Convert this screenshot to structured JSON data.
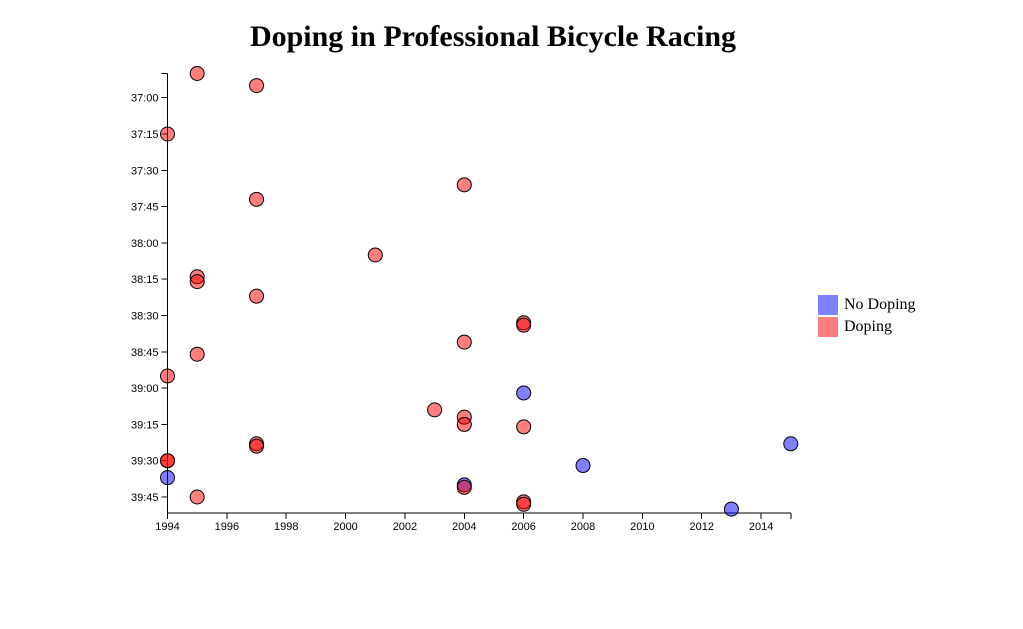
{
  "chart_data": {
    "type": "scatter",
    "title": "Doping in Professional Bicycle Racing",
    "x_axis": {
      "label": "",
      "ticks": [
        "1994",
        "1996",
        "1998",
        "2000",
        "2002",
        "2004",
        "2006",
        "2008",
        "2010",
        "2012",
        "2014"
      ],
      "range": [
        1994,
        2015
      ],
      "grid": false
    },
    "y_axis": {
      "label": "",
      "ticks": [
        "37:00",
        "37:15",
        "37:30",
        "37:45",
        "38:00",
        "38:15",
        "38:30",
        "38:45",
        "39:00",
        "39:15",
        "39:30",
        "39:45"
      ],
      "range": [
        "36:50",
        "39:50"
      ],
      "grid": false
    },
    "point_style": {
      "radius": 7,
      "stroke": "#000000",
      "fill_opacity": 0.5
    },
    "legend": {
      "position": "right",
      "items": [
        {
          "label": "No Doping",
          "color": "#0000FF"
        },
        {
          "label": "Doping",
          "color": "#FF0000"
        }
      ]
    },
    "series": [
      {
        "name": "No Doping",
        "color": "#0000FF",
        "points": [
          {
            "year": 1994,
            "time": "39:37"
          },
          {
            "year": 2004,
            "time": "39:40"
          },
          {
            "year": 2006,
            "time": "39:02"
          },
          {
            "year": 2008,
            "time": "39:32"
          },
          {
            "year": 2013,
            "time": "39:50"
          },
          {
            "year": 2015,
            "time": "39:23"
          }
        ]
      },
      {
        "name": "Doping",
        "color": "#FF0000",
        "points": [
          {
            "year": 1995,
            "time": "36:50"
          },
          {
            "year": 1997,
            "time": "36:55"
          },
          {
            "year": 1994,
            "time": "37:15"
          },
          {
            "year": 2004,
            "time": "37:36"
          },
          {
            "year": 1997,
            "time": "37:42"
          },
          {
            "year": 2001,
            "time": "38:05"
          },
          {
            "year": 1995,
            "time": "38:14"
          },
          {
            "year": 1995,
            "time": "38:16"
          },
          {
            "year": 1997,
            "time": "38:22"
          },
          {
            "year": 2006,
            "time": "38:33"
          },
          {
            "year": 2006,
            "time": "38:34"
          },
          {
            "year": 2004,
            "time": "38:41"
          },
          {
            "year": 1995,
            "time": "38:46"
          },
          {
            "year": 1994,
            "time": "38:55"
          },
          {
            "year": 2003,
            "time": "39:09"
          },
          {
            "year": 2004,
            "time": "39:12"
          },
          {
            "year": 2004,
            "time": "39:15"
          },
          {
            "year": 2006,
            "time": "39:16"
          },
          {
            "year": 1997,
            "time": "39:23"
          },
          {
            "year": 1997,
            "time": "39:24"
          },
          {
            "year": 1994,
            "time": "39:30"
          },
          {
            "year": 1994,
            "time": "39:30"
          },
          {
            "year": 2004,
            "time": "39:41"
          },
          {
            "year": 1995,
            "time": "39:45"
          },
          {
            "year": 2006,
            "time": "39:47"
          },
          {
            "year": 2006,
            "time": "39:48"
          }
        ]
      }
    ]
  }
}
